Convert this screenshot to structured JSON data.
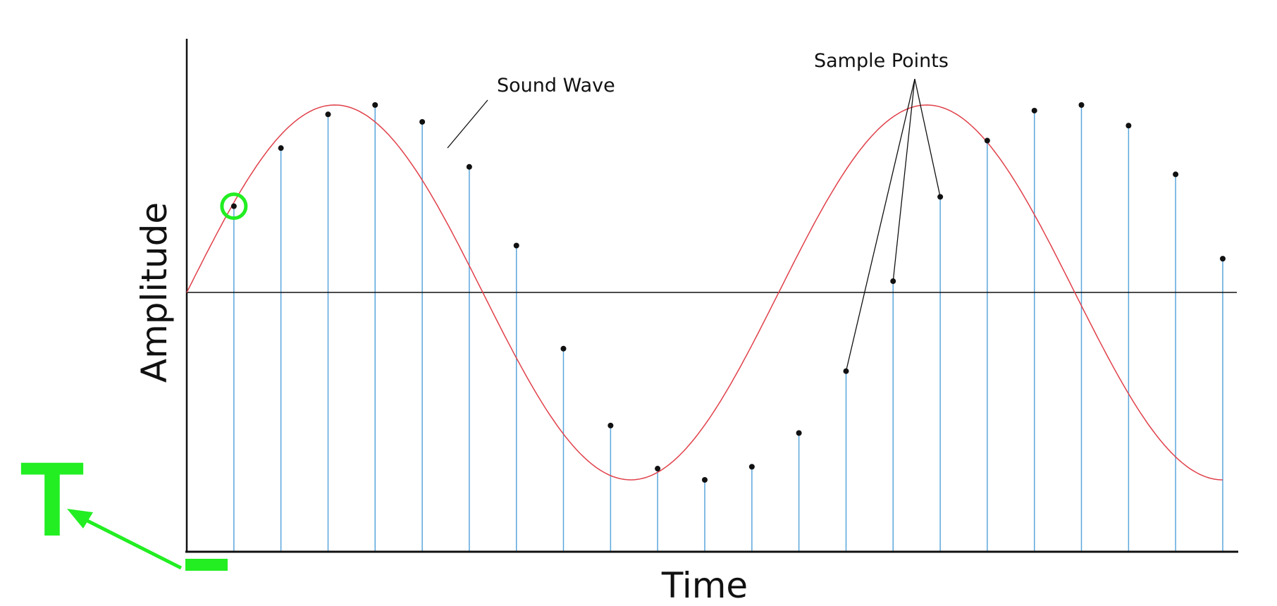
{
  "labels": {
    "x_axis": "Time",
    "y_axis": "Amplitude",
    "wave": "Sound Wave",
    "samples": "Sample Points",
    "marker_letter": "T"
  },
  "colors": {
    "wave": "#e0404a",
    "sample_line": "#5aa6dc",
    "sample_point": "#111111",
    "axis": "#111111",
    "highlight": "#22ee22"
  },
  "chart_data": {
    "type": "line",
    "title": "",
    "xlabel": "Time",
    "ylabel": "Amplitude",
    "wave": {
      "cycles": 1.75,
      "amplitude": 1.0
    },
    "sample_count": 22,
    "samples": {
      "x": [
        0.0455,
        0.0909,
        0.1364,
        0.1818,
        0.2273,
        0.2727,
        0.3182,
        0.3636,
        0.4091,
        0.4545,
        0.5,
        0.5455,
        0.5909,
        0.6364,
        0.6818,
        0.7273,
        0.7727,
        0.8182,
        0.8636,
        0.9091,
        0.9545,
        1.0
      ],
      "y": [
        0.46,
        0.77,
        0.95,
        1.0,
        0.91,
        0.67,
        0.25,
        -0.3,
        -0.71,
        -0.94,
        -1.0,
        -0.93,
        -0.75,
        -0.42,
        0.06,
        0.51,
        0.81,
        0.97,
        1.0,
        0.89,
        0.63,
        0.18
      ]
    },
    "annotations": [
      "Sound Wave",
      "Sample Points"
    ],
    "highlighted_sample_index": 0
  }
}
